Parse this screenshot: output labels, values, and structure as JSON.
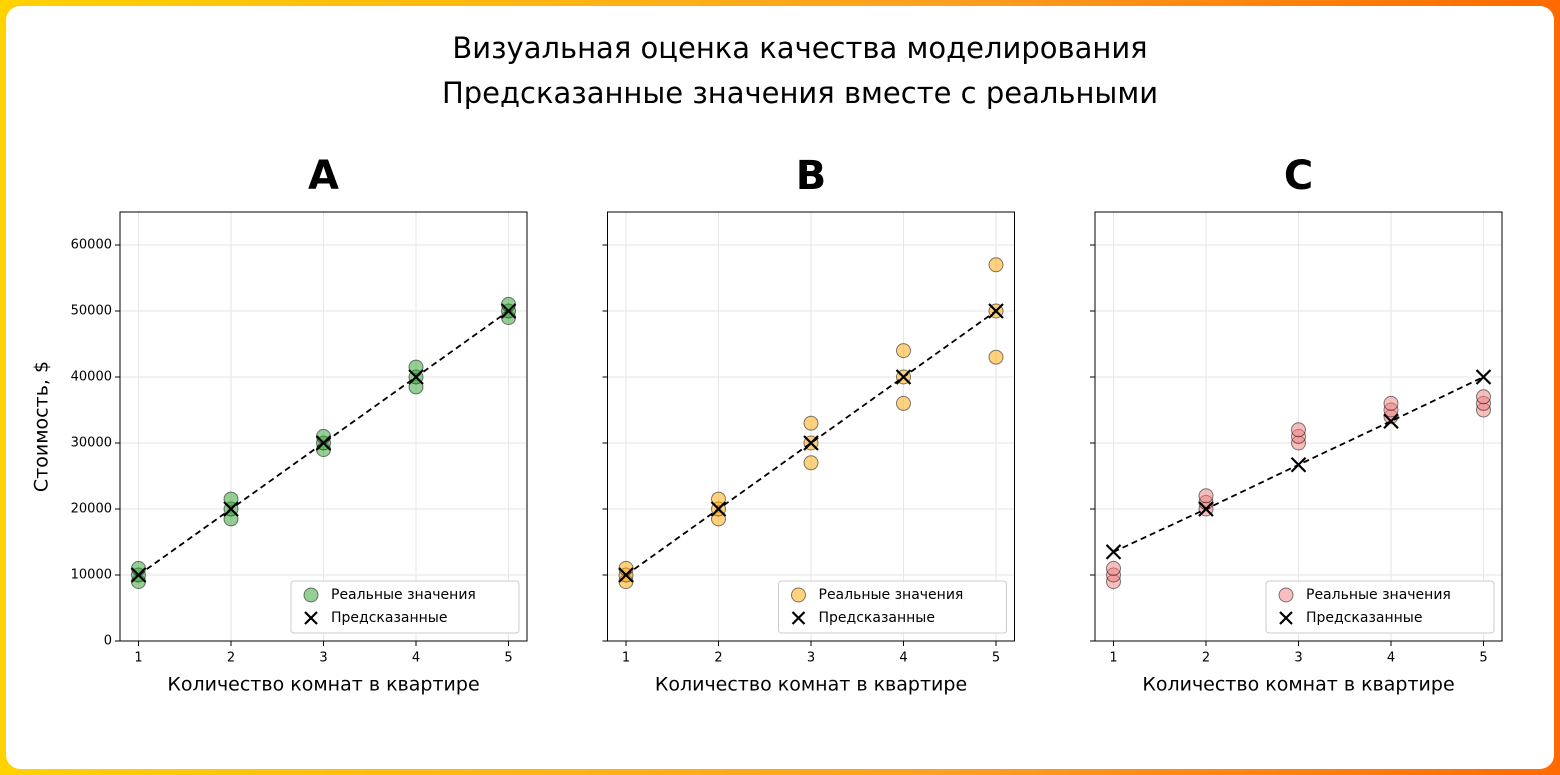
{
  "title": [
    "Визуальная оценка качества моделирования",
    "Предсказанные значения вместе с реальными"
  ],
  "chart_data": [
    {
      "type": "scatter",
      "title": "A",
      "xlabel": "Количество комнат в квартире",
      "ylabel": "Стоимость, $",
      "xlim": [
        0.8,
        5.2
      ],
      "xticks": [
        1,
        2,
        3,
        4,
        5
      ],
      "ylim": [
        0,
        65000
      ],
      "yticks": [
        0,
        10000,
        20000,
        30000,
        40000,
        50000,
        60000
      ],
      "ytick_labels": true,
      "grid": true,
      "legend": "lower right",
      "series": [
        {
          "name": "Реальные значения",
          "marker": "o",
          "color": "#2ca02c",
          "x": [
            1,
            1,
            1,
            2,
            2,
            2,
            3,
            3,
            3,
            4,
            4,
            4,
            5,
            5,
            5
          ],
          "values": [
            9000,
            10000,
            11000,
            18500,
            20000,
            21500,
            29000,
            30000,
            31000,
            38500,
            40000,
            41500,
            49000,
            50000,
            51000
          ]
        },
        {
          "name": "Предсказанные",
          "marker": "x",
          "line": "dashed",
          "color": "#000000",
          "x": [
            1,
            2,
            3,
            4,
            5
          ],
          "values": [
            10000,
            20000,
            30000,
            40000,
            50000
          ]
        }
      ]
    },
    {
      "type": "scatter",
      "title": "B",
      "xlabel": "Количество комнат в квартире",
      "xlim": [
        0.8,
        5.2
      ],
      "xticks": [
        1,
        2,
        3,
        4,
        5
      ],
      "ylim": [
        0,
        65000
      ],
      "yticks": [
        0,
        10000,
        20000,
        30000,
        40000,
        50000,
        60000
      ],
      "ytick_labels": false,
      "grid": true,
      "legend": "lower right",
      "series": [
        {
          "name": "Реальные значения",
          "marker": "o",
          "color": "#ffa500",
          "x": [
            1,
            1,
            1,
            2,
            2,
            2,
            3,
            3,
            3,
            4,
            4,
            4,
            5,
            5,
            5
          ],
          "values": [
            9000,
            10000,
            11000,
            18500,
            20000,
            21500,
            27000,
            30000,
            33000,
            36000,
            40000,
            44000,
            43000,
            50000,
            57000
          ]
        },
        {
          "name": "Предсказанные",
          "marker": "x",
          "line": "dashed",
          "color": "#000000",
          "x": [
            1,
            2,
            3,
            4,
            5
          ],
          "values": [
            10000,
            20000,
            30000,
            40000,
            50000
          ]
        }
      ]
    },
    {
      "type": "scatter",
      "title": "C",
      "xlabel": "Количество комнат в квартире",
      "xlim": [
        0.8,
        5.2
      ],
      "xticks": [
        1,
        2,
        3,
        4,
        5
      ],
      "ylim": [
        0,
        65000
      ],
      "yticks": [
        0,
        10000,
        20000,
        30000,
        40000,
        50000,
        60000
      ],
      "ytick_labels": false,
      "grid": true,
      "legend": "lower right",
      "series": [
        {
          "name": "Реальные значения",
          "marker": "o",
          "color": "#f08080",
          "x": [
            1,
            1,
            1,
            2,
            2,
            2,
            3,
            3,
            3,
            4,
            4,
            4,
            5,
            5,
            5
          ],
          "values": [
            9000,
            10000,
            11000,
            20000,
            21000,
            22000,
            30000,
            31000,
            32000,
            34000,
            35000,
            36000,
            35000,
            36000,
            37000
          ]
        },
        {
          "name": "Предсказанные",
          "marker": "x",
          "line": "dashed",
          "color": "#000000",
          "x": [
            1,
            2,
            3,
            4,
            5
          ],
          "values": [
            13500,
            20000,
            26700,
            33300,
            40000
          ]
        }
      ]
    }
  ]
}
